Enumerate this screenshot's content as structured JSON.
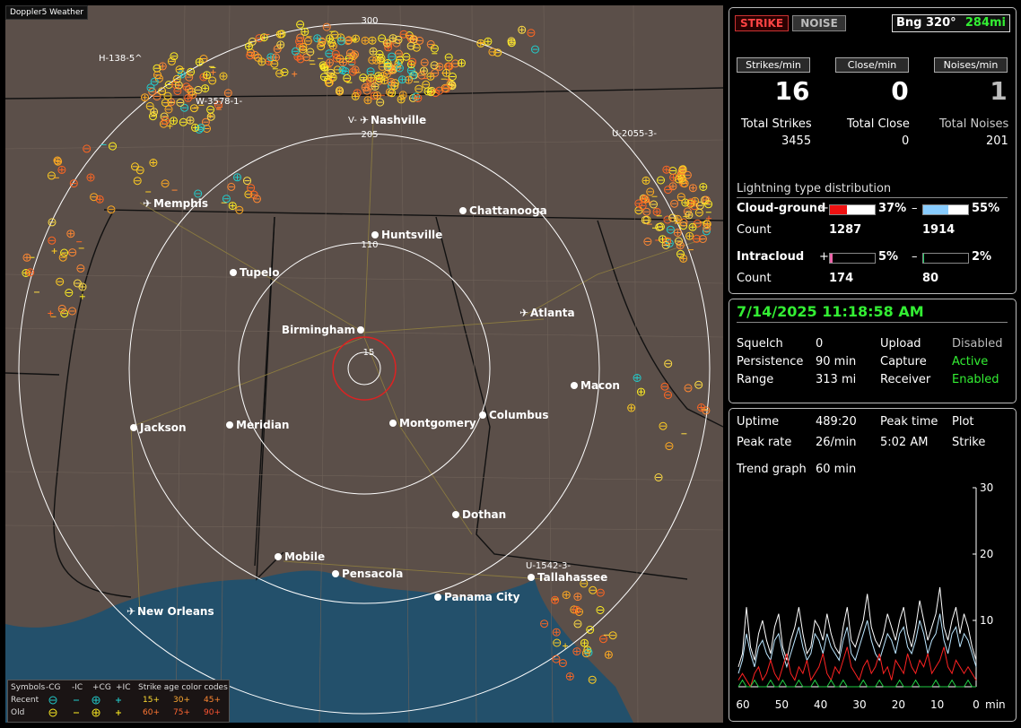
{
  "map": {
    "title": "Doppler5 Weather",
    "range_labels": [
      "15",
      "110",
      "205",
      "300"
    ],
    "cities": [
      {
        "name": "Nashville",
        "type": "airport"
      },
      {
        "name": "Memphis",
        "type": "airport"
      },
      {
        "name": "Chattanooga",
        "type": "dot"
      },
      {
        "name": "Huntsville",
        "type": "dot"
      },
      {
        "name": "Tupelo",
        "type": "dot"
      },
      {
        "name": "Atlanta",
        "type": "airport"
      },
      {
        "name": "Birmingham",
        "type": "dot"
      },
      {
        "name": "Macon",
        "type": "dot"
      },
      {
        "name": "Jackson",
        "type": "dot"
      },
      {
        "name": "Meridian",
        "type": "dot"
      },
      {
        "name": "Montgomery",
        "type": "dot"
      },
      {
        "name": "Columbus",
        "type": "dot"
      },
      {
        "name": "Dothan",
        "type": "dot"
      },
      {
        "name": "Mobile",
        "type": "dot"
      },
      {
        "name": "Pensacola",
        "type": "dot"
      },
      {
        "name": "Tallahassee",
        "type": "dot"
      },
      {
        "name": "Panama City",
        "type": "dot"
      },
      {
        "name": "New Orleans",
        "type": "airport"
      }
    ],
    "cell_labels": [
      "H-138-5^",
      "W-3578-1-",
      "V-",
      "U-2055-3-",
      "U-1542-3-"
    ],
    "legend": {
      "symbols_label": "Symbols",
      "headers": [
        "-CG",
        "-IC",
        "+CG",
        "+IC"
      ],
      "age_title": "Strike age color codes",
      "recent_label": "Recent",
      "old_label": "Old",
      "recent_ages": [
        "15+",
        "30+",
        "45+"
      ],
      "old_ages": [
        "60+",
        "75+",
        "90+"
      ]
    }
  },
  "status": {
    "strike_button": "STRIKE",
    "noise_button": "NOISE",
    "bearing": "Bng 320°",
    "bearing_distance": "284mi",
    "strikes_per_min_label": "Strikes/min",
    "close_per_min_label": "Close/min",
    "noises_per_min_label": "Noises/min",
    "strikes_per_min": "16",
    "close_per_min": "0",
    "noises_per_min": "1",
    "total_strikes_label": "Total Strikes",
    "total_close_label": "Total Close",
    "total_noises_label": "Total Noises",
    "total_strikes": "3455",
    "total_close": "0",
    "total_noises": "201"
  },
  "distribution": {
    "title": "Lightning type distribution",
    "cg_label": "Cloud-ground",
    "ic_label": "Intracloud",
    "count_label": "Count",
    "plus": "+",
    "minus": "–",
    "cg_pos_pct": "37%",
    "cg_neg_pct": "55%",
    "cg_pos_count": "1287",
    "cg_neg_count": "1914",
    "ic_pos_pct": "5%",
    "ic_neg_pct": "2%",
    "ic_pos_count": "174",
    "ic_neg_count": "80",
    "cg_pos_frac": 0.37,
    "cg_neg_frac": 0.55,
    "ic_pos_frac": 0.05,
    "ic_neg_frac": 0.02
  },
  "settings": {
    "datetime": "7/14/2025 11:18:58 AM",
    "squelch_label": "Squelch",
    "squelch": "0",
    "persistence_label": "Persistence",
    "persistence": "90 min",
    "range_label": "Range",
    "range": "313 mi",
    "upload_label": "Upload",
    "upload": "Disabled",
    "capture_label": "Capture",
    "capture": "Active",
    "receiver_label": "Receiver",
    "receiver": "Enabled"
  },
  "stats": {
    "uptime_label": "Uptime",
    "uptime": "489:20",
    "peak_time_label": "Peak time",
    "plot_label": "Plot",
    "peak_rate_label": "Peak rate",
    "peak_rate": "26/min",
    "peak_time": "5:02 AM",
    "plot": "Strike",
    "trend_label": "Trend graph",
    "trend_window": "60 min"
  },
  "chart_data": {
    "type": "line",
    "x_ticks": [
      "60",
      "50",
      "40",
      "30",
      "20",
      "10",
      "0"
    ],
    "x_unit": "min",
    "y_ticks": [
      "10",
      "20",
      "30"
    ],
    "ylim": [
      0,
      30
    ],
    "series": [
      {
        "color": "#ffffff",
        "values": [
          3,
          5,
          12,
          6,
          4,
          8,
          10,
          7,
          5,
          9,
          11,
          6,
          4,
          7,
          9,
          12,
          8,
          5,
          6,
          10,
          9,
          7,
          11,
          8,
          6,
          5,
          9,
          12,
          7,
          6,
          8,
          10,
          14,
          9,
          7,
          6,
          8,
          11,
          9,
          7,
          10,
          12,
          8,
          6,
          9,
          13,
          10,
          7,
          9,
          11,
          15,
          9,
          7,
          10,
          12,
          8,
          11,
          9,
          6,
          4
        ]
      },
      {
        "color": "#bbe6ff",
        "values": [
          2,
          4,
          8,
          5,
          3,
          6,
          7,
          5,
          4,
          7,
          8,
          5,
          3,
          5,
          7,
          9,
          6,
          4,
          5,
          8,
          7,
          5,
          8,
          6,
          5,
          4,
          7,
          9,
          5,
          4,
          6,
          8,
          10,
          7,
          5,
          4,
          6,
          8,
          7,
          5,
          8,
          9,
          6,
          5,
          7,
          10,
          8,
          5,
          7,
          8,
          11,
          7,
          5,
          8,
          9,
          6,
          8,
          7,
          5,
          3
        ]
      },
      {
        "color": "#ff2222",
        "values": [
          1,
          2,
          1,
          0,
          2,
          3,
          1,
          2,
          4,
          2,
          1,
          3,
          5,
          2,
          1,
          3,
          2,
          4,
          1,
          2,
          3,
          5,
          2,
          1,
          3,
          2,
          4,
          6,
          3,
          2,
          1,
          3,
          4,
          2,
          3,
          5,
          2,
          3,
          1,
          4,
          3,
          2,
          5,
          3,
          2,
          4,
          3,
          5,
          2,
          3,
          4,
          6,
          3,
          2,
          4,
          3,
          2,
          3,
          2,
          1
        ]
      },
      {
        "color": "#22cc44",
        "values": [
          0,
          1,
          0,
          0,
          1,
          0,
          0,
          0,
          1,
          0,
          0,
          1,
          0,
          0,
          0,
          1,
          0,
          0,
          0,
          1,
          0,
          0,
          0,
          1,
          0,
          0,
          1,
          0,
          0,
          0,
          0,
          1,
          0,
          0,
          0,
          1,
          0,
          0,
          0,
          0,
          1,
          0,
          0,
          0,
          1,
          0,
          0,
          0,
          0,
          1,
          0,
          0,
          0,
          1,
          0,
          0,
          0,
          1,
          0,
          0
        ]
      }
    ]
  }
}
